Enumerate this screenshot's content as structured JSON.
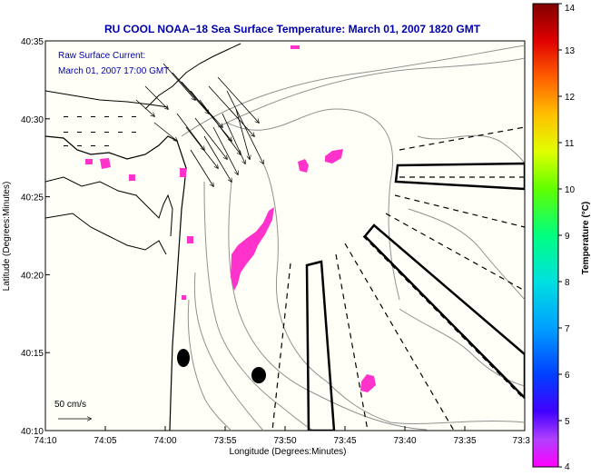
{
  "title": "RU COOL  NOAA−18  Sea Surface Temperature:  March 01, 2007 1820 GMT",
  "subtitle_line1": "Raw Surface Current:",
  "subtitle_line2": "March 01, 2007 17:00 GMT",
  "xlabel": "Longitude (Degrees:Minutes)",
  "ylabel": "Latitude (Degrees:Minutes)",
  "colorbar_label": "Temperature (°C)",
  "scale_label": "50 cm/s",
  "x_ticks": [
    "74:10",
    "74:05",
    "74:00",
    "73:55",
    "73:50",
    "73:45",
    "73:40",
    "73:35",
    "73:3"
  ],
  "y_ticks": [
    "40:35",
    "40:30",
    "40:25",
    "40:20",
    "40:15",
    "40:10"
  ],
  "colorbar_ticks": [
    "14",
    "13",
    "12",
    "11",
    "10",
    "9",
    "8",
    "7",
    "6",
    "5",
    "4"
  ],
  "colors": {
    "title": "#0000aa",
    "warm_patch": "#ff33cc",
    "land_ocean": "#fffff8",
    "contour": "#909090"
  }
}
